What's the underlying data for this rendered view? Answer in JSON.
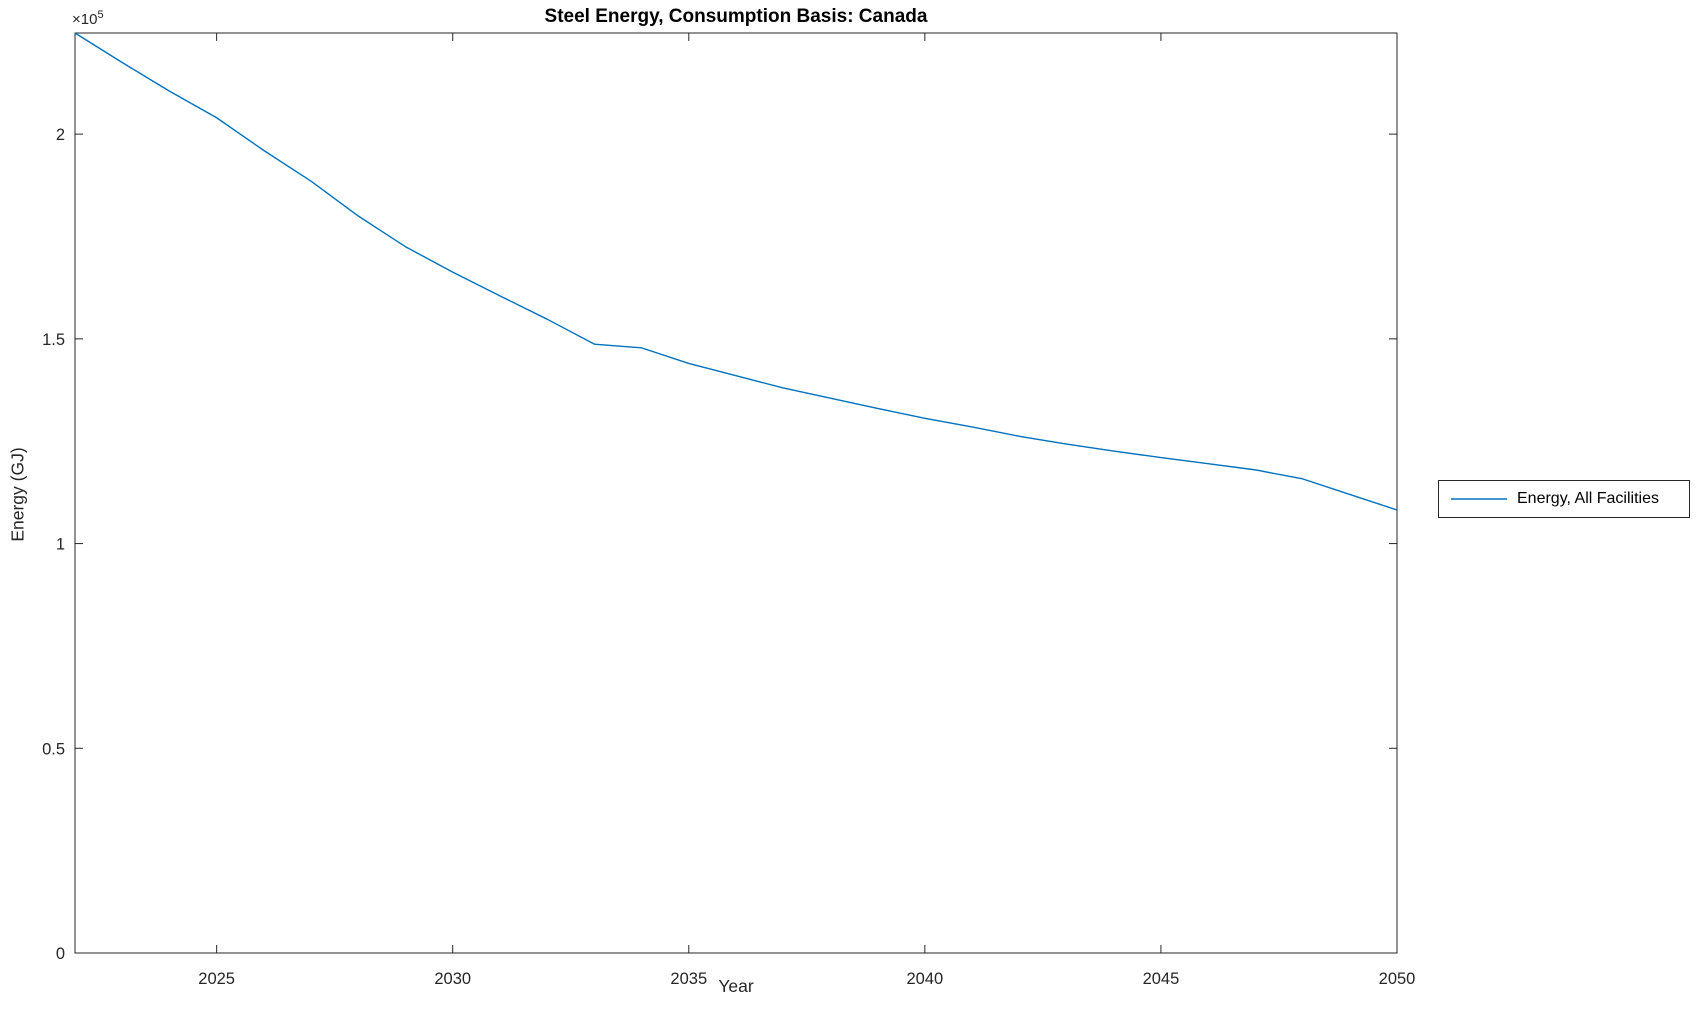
{
  "figure": {
    "title": "Steel Energy, Consumption Basis: Canada",
    "xlabel": "Year",
    "ylabel": "Energy (GJ)",
    "exponent_base": "×10",
    "exponent_power": "5"
  },
  "legend": {
    "position": "right-outside",
    "items": [
      {
        "label": "Energy, All Facilities",
        "color": "#0072BD"
      }
    ]
  },
  "colors": {
    "line_blue": "#0072BD",
    "axis": "#262626",
    "title_text": "#000000",
    "background": "#ffffff"
  },
  "chart_data": {
    "type": "line",
    "title": "Steel Energy, Consumption Basis: Canada",
    "xlabel": "Year",
    "ylabel": "Energy (GJ)",
    "y_unit_multiplier_label": "×10^5",
    "grid": false,
    "box": true,
    "legend_position": "right-outside",
    "xlim": [
      2022,
      2050
    ],
    "ylim": [
      0,
      224700
    ],
    "x_ticks": [
      2025,
      2030,
      2035,
      2040,
      2045,
      2050
    ],
    "y_ticks": [
      0,
      50000,
      100000,
      150000,
      200000
    ],
    "y_tick_labels": [
      "0",
      "0.5",
      "1",
      "1.5",
      "2"
    ],
    "y_tick_scale": 100000,
    "series": [
      {
        "name": "Energy, All Facilities",
        "color": "#0072BD",
        "x": [
          2022,
          2023,
          2024,
          2025,
          2026,
          2027,
          2028,
          2029,
          2030,
          2031,
          2032,
          2033,
          2034,
          2035,
          2036,
          2037,
          2038,
          2039,
          2040,
          2041,
          2042,
          2043,
          2044,
          2045,
          2046,
          2047,
          2048,
          2049,
          2050
        ],
        "y": [
          224700,
          217500,
          210500,
          204000,
          196000,
          188500,
          180000,
          172500,
          166300,
          160500,
          154800,
          148700,
          147800,
          144000,
          141000,
          138000,
          135500,
          133000,
          130600,
          128500,
          126200,
          124300,
          122600,
          121000,
          119500,
          118000,
          115800,
          112000,
          108200
        ]
      }
    ]
  }
}
